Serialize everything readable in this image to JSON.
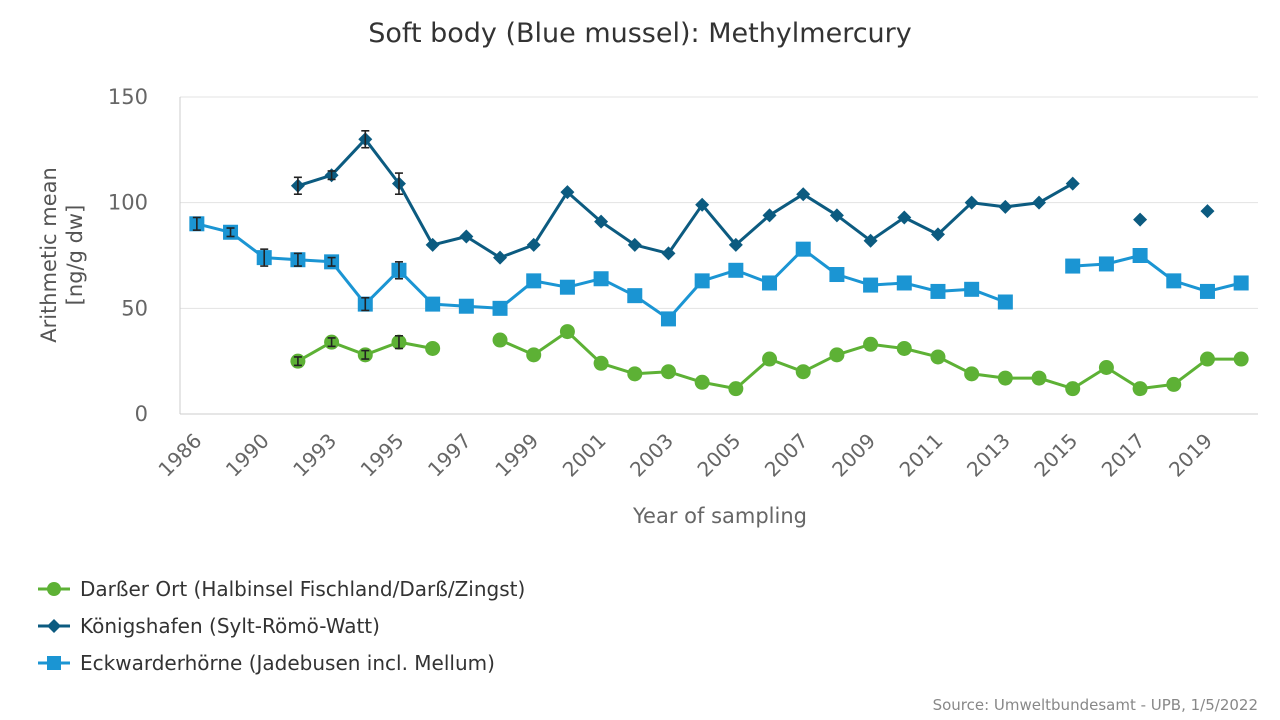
{
  "source": "Source: Umweltbundesamt - UPB, 1/5/2022",
  "chart_data": {
    "type": "line",
    "title": "Soft body (Blue mussel): Methylmercury",
    "xlabel": "Year of sampling",
    "ylabel": "Arithmetic mean\n[ng/g dw]",
    "ylim": [
      0,
      150
    ],
    "yticks": [
      0,
      50,
      100,
      150
    ],
    "grid": true,
    "legend_position": "bottom-left",
    "categories": [
      "1986",
      "1988",
      "1990",
      "1992",
      "1993",
      "1994",
      "1995",
      "1996",
      "1997",
      "1998",
      "1999",
      "2000",
      "2001",
      "2002",
      "2003",
      "2004",
      "2005",
      "2006",
      "2007",
      "2008",
      "2009",
      "2010",
      "2011",
      "2012",
      "2013",
      "2014",
      "2015",
      "2016",
      "2017",
      "2018",
      "2019",
      "2020"
    ],
    "tick_labels": [
      "1986",
      "",
      "1990",
      "",
      "1993",
      "",
      "1995",
      "",
      "1997",
      "",
      "1999",
      "",
      "2001",
      "",
      "2003",
      "",
      "2005",
      "",
      "2007",
      "",
      "2009",
      "",
      "2011",
      "",
      "2013",
      "",
      "2015",
      "",
      "2017",
      "",
      "2019",
      ""
    ],
    "series": [
      {
        "name": "Darßer Ort (Halbinsel Fischland/Darß/Zingst)",
        "color": "#5db135",
        "marker": "circle",
        "values": [
          null,
          null,
          null,
          25,
          34,
          28,
          34,
          31,
          null,
          35,
          28,
          39,
          24,
          19,
          20,
          15,
          12,
          26,
          20,
          28,
          33,
          31,
          27,
          19,
          17,
          17,
          12,
          22,
          12,
          14,
          26,
          26
        ],
        "error": [
          null,
          null,
          null,
          2,
          2,
          2,
          3,
          null,
          null,
          null,
          null,
          null,
          null,
          null,
          null,
          null,
          null,
          null,
          null,
          null,
          null,
          null,
          null,
          null,
          null,
          null,
          null,
          null,
          null,
          null,
          null,
          null
        ]
      },
      {
        "name": "Königshafen (Sylt-Römö-Watt)",
        "color": "#0c5b80",
        "marker": "diamond",
        "values": [
          null,
          null,
          null,
          108,
          113,
          130,
          109,
          80,
          84,
          74,
          80,
          105,
          91,
          80,
          76,
          99,
          80,
          94,
          104,
          94,
          82,
          93,
          85,
          100,
          98,
          100,
          109,
          null,
          92,
          null,
          96,
          null
        ],
        "error": [
          null,
          null,
          null,
          4,
          2,
          4,
          5,
          null,
          null,
          null,
          null,
          null,
          null,
          null,
          null,
          null,
          null,
          null,
          null,
          null,
          null,
          null,
          null,
          null,
          null,
          null,
          null,
          null,
          null,
          null,
          null,
          null
        ]
      },
      {
        "name": "Eckwarderhörne (Jadebusen incl. Mellum)",
        "color": "#1b95d3",
        "marker": "square",
        "values": [
          90,
          86,
          74,
          73,
          72,
          52,
          68,
          52,
          51,
          50,
          63,
          60,
          64,
          56,
          45,
          63,
          68,
          62,
          78,
          66,
          61,
          62,
          58,
          59,
          53,
          null,
          70,
          71,
          75,
          63,
          58,
          62
        ],
        "error": [
          3,
          2,
          4,
          3,
          2,
          3,
          4,
          null,
          null,
          null,
          null,
          null,
          null,
          null,
          null,
          null,
          null,
          null,
          null,
          null,
          null,
          null,
          null,
          null,
          null,
          null,
          null,
          null,
          null,
          null,
          null,
          null
        ]
      }
    ]
  }
}
